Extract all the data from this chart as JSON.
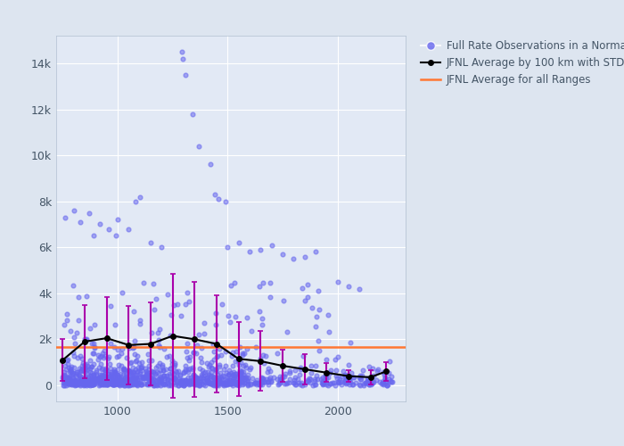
{
  "bg_color": "#dde5f0",
  "plot_bg_color": "#e2e9f5",
  "scatter_color": "#6666ee",
  "scatter_alpha": 0.55,
  "scatter_size": 12,
  "line_color": "black",
  "line_marker": "o",
  "line_markersize": 4,
  "errorbar_color": "#aa00aa",
  "hline_color": "#ff7733",
  "hline_value": 1650,
  "hline_lw": 1.8,
  "xlim": [
    720,
    2310
  ],
  "ylim": [
    -700,
    15200
  ],
  "ytick_labels": [
    "0",
    "2k",
    "4k",
    "6k",
    "8k",
    "10k",
    "12k",
    "14k"
  ],
  "ytick_values": [
    0,
    2000,
    4000,
    6000,
    8000,
    10000,
    12000,
    14000
  ],
  "xtick_values": [
    1000,
    1500,
    2000
  ],
  "legend_labels": [
    "Full Rate Observations in a Normal Point",
    "JFNL Average by 100 km with STD",
    "JFNL Average for all Ranges"
  ],
  "avg_x": [
    750,
    850,
    950,
    1050,
    1150,
    1250,
    1350,
    1450,
    1550,
    1650,
    1750,
    1850,
    1950,
    2050,
    2150,
    2220
  ],
  "avg_y": [
    1100,
    1900,
    2050,
    1750,
    1800,
    2150,
    2000,
    1800,
    1150,
    1050,
    850,
    700,
    550,
    400,
    350,
    600
  ],
  "avg_std": [
    900,
    1600,
    1800,
    1700,
    1800,
    2700,
    2500,
    2100,
    1600,
    1300,
    700,
    650,
    400,
    250,
    300,
    400
  ]
}
